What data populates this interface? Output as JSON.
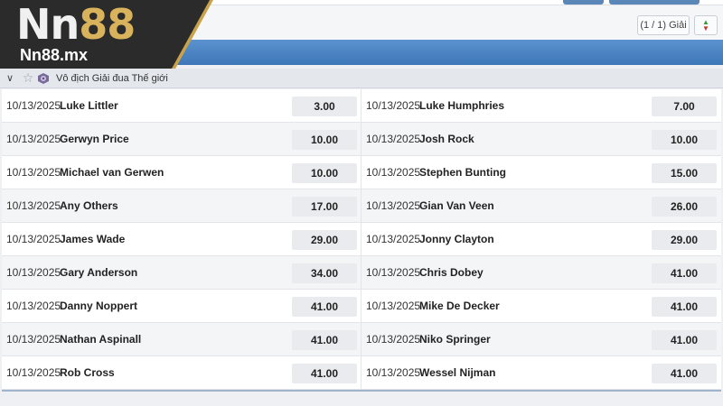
{
  "logo": {
    "brand_big": "Nn88",
    "brand_small": "Nn88.mx"
  },
  "pager": {
    "label": "(1 / 1) Giải"
  },
  "league": {
    "name": "Vô địch Giải đua Thế giới"
  },
  "rows": [
    {
      "left": {
        "date": "10/13/2025",
        "player": "Luke Littler",
        "odds": "3.00"
      },
      "right": {
        "date": "10/13/2025",
        "player": "Luke Humphries",
        "odds": "7.00"
      }
    },
    {
      "left": {
        "date": "10/13/2025",
        "player": "Gerwyn Price",
        "odds": "10.00"
      },
      "right": {
        "date": "10/13/2025",
        "player": "Josh Rock",
        "odds": "10.00"
      }
    },
    {
      "left": {
        "date": "10/13/2025",
        "player": "Michael van Gerwen",
        "odds": "10.00"
      },
      "right": {
        "date": "10/13/2025",
        "player": "Stephen Bunting",
        "odds": "15.00"
      }
    },
    {
      "left": {
        "date": "10/13/2025",
        "player": "Any Others",
        "odds": "17.00"
      },
      "right": {
        "date": "10/13/2025",
        "player": "Gian Van Veen",
        "odds": "26.00"
      }
    },
    {
      "left": {
        "date": "10/13/2025",
        "player": "James Wade",
        "odds": "29.00"
      },
      "right": {
        "date": "10/13/2025",
        "player": "Jonny Clayton",
        "odds": "29.00"
      }
    },
    {
      "left": {
        "date": "10/13/2025",
        "player": "Gary Anderson",
        "odds": "34.00"
      },
      "right": {
        "date": "10/13/2025",
        "player": "Chris Dobey",
        "odds": "41.00"
      }
    },
    {
      "left": {
        "date": "10/13/2025",
        "player": "Danny Noppert",
        "odds": "41.00"
      },
      "right": {
        "date": "10/13/2025",
        "player": "Mike De Decker",
        "odds": "41.00"
      }
    },
    {
      "left": {
        "date": "10/13/2025",
        "player": "Nathan Aspinall",
        "odds": "41.00"
      },
      "right": {
        "date": "10/13/2025",
        "player": "Niko Springer",
        "odds": "41.00"
      }
    },
    {
      "left": {
        "date": "10/13/2025",
        "player": "Rob Cross",
        "odds": "41.00"
      },
      "right": {
        "date": "10/13/2025",
        "player": "Wessel Nijman",
        "odds": "41.00"
      }
    }
  ],
  "icons": {
    "collapse": "chevron-down-icon",
    "favorite": "star-icon",
    "league": "dartboard-icon",
    "sort": "sort-arrows-icon"
  },
  "colors": {
    "band": "#4a84c4",
    "brand_gold": "#d9b25c",
    "odds_bg": "#e9ebee"
  }
}
